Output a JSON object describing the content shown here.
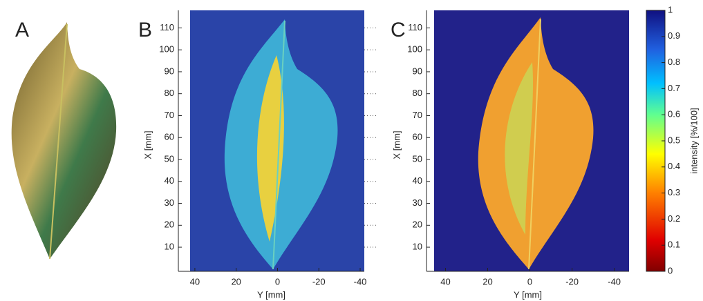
{
  "panels": [
    {
      "label": "A"
    },
    {
      "label": "B",
      "x_label": "Y [mm]",
      "y_label": "X [mm]",
      "xlim": [
        48,
        -42
      ],
      "ylim": [
        -1,
        118
      ],
      "x_ticks": [
        40,
        20,
        0,
        -20,
        -40
      ],
      "y_ticks": [
        10,
        20,
        30,
        40,
        50,
        60,
        70,
        80,
        90,
        100,
        110
      ]
    },
    {
      "label": "C",
      "x_label": "Y [mm]",
      "y_label": "X [mm]",
      "xlim": [
        49,
        -47
      ],
      "ylim": [
        -1,
        118
      ],
      "x_ticks": [
        40,
        20,
        0,
        -20,
        -40
      ],
      "y_ticks": [
        10,
        20,
        30,
        40,
        50,
        60,
        70,
        80,
        90,
        100,
        110
      ]
    }
  ],
  "colorbar": {
    "label": "intensity [%/100]",
    "lim": [
      0,
      1
    ],
    "ticks": [
      0,
      0.1,
      0.2,
      0.3,
      0.4,
      0.5,
      0.6,
      0.7,
      0.8,
      0.9,
      1
    ]
  }
}
